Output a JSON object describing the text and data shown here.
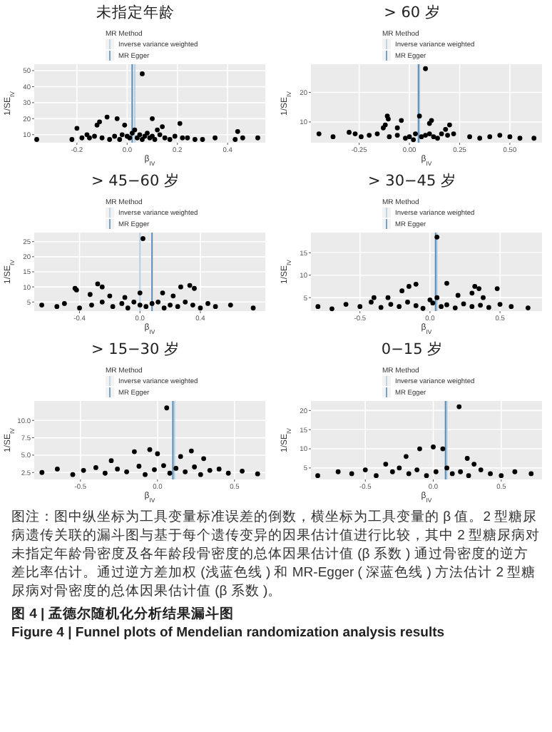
{
  "chart_data": [
    {
      "type": "scatter",
      "title": "未指定年龄",
      "xlabel": "β$_{IV}$",
      "ylabel": "1/SE$_{IV}$",
      "legend_title": "MR Method",
      "legend": "top",
      "grid": true,
      "marker": "circle",
      "xlim": [
        -0.37,
        0.55
      ],
      "ylim": [
        5,
        54
      ],
      "xticks": [
        {
          "value": -0.2,
          "label": "-0.2"
        },
        {
          "value": 0,
          "label": "0.0"
        },
        {
          "value": 0.2,
          "label": "0.2"
        },
        {
          "value": 0.4,
          "label": "0.4"
        }
      ],
      "yticks": [
        10,
        20,
        30,
        40,
        50
      ],
      "ref_lines": [
        {
          "axis": "x",
          "value": 0.03,
          "label": "Inverse variance weighted",
          "color": "#b3cfe3"
        },
        {
          "axis": "x",
          "value": 0.02,
          "label": "MR Egger",
          "color": "#5a8cb5"
        }
      ],
      "series": [
        {
          "color": "#000000",
          "x": [
            0.06,
            0.1,
            -0.08,
            -0.04,
            -0.12,
            -0.11,
            -0.2,
            0.21,
            0.14,
            0.12,
            0.44,
            0.03,
            -0.01,
            0.02,
            0.05,
            0.08,
            -0.36,
            -0.22,
            -0.18,
            -0.15,
            -0.13,
            -0.1,
            -0.07,
            -0.05,
            -0.03,
            0.0,
            0.01,
            0.04,
            0.06,
            0.07,
            0.09,
            0.11,
            0.13,
            0.15,
            0.17,
            0.19,
            0.22,
            0.24,
            0.27,
            0.3,
            0.35,
            0.43,
            0.46,
            0.52,
            -0.16,
            -0.02,
            0.1
          ],
          "values": [
            48,
            20,
            21,
            20,
            16,
            18,
            14,
            17,
            15,
            13,
            12,
            13,
            16,
            11,
            10,
            11,
            7,
            7,
            8,
            8,
            9,
            8,
            7,
            9,
            7,
            9,
            8,
            8,
            7,
            9,
            8,
            7,
            10,
            8,
            7,
            9,
            8,
            8,
            7,
            7,
            8,
            7,
            8,
            8,
            10,
            10,
            9
          ]
        }
      ]
    },
    {
      "type": "scatter",
      "title": "> 60 岁",
      "xlabel": "β$_{IV}$",
      "ylabel": "1/SE$_{IV}$",
      "legend_title": "MR Method",
      "legend": "top",
      "grid": true,
      "marker": "circle",
      "xlim": [
        -0.49,
        0.66
      ],
      "ylim": [
        3,
        29.5
      ],
      "xticks": [
        {
          "value": -0.25,
          "label": "-0.25"
        },
        {
          "value": 0,
          "label": "0.00"
        },
        {
          "value": 0.25,
          "label": "0.25"
        },
        {
          "value": 0.5,
          "label": "0.50"
        }
      ],
      "yticks": [
        10,
        20
      ],
      "ref_lines": [
        {
          "axis": "x",
          "value": 0.05,
          "label": "Inverse variance weighted",
          "color": "#b3cfe3"
        },
        {
          "axis": "x",
          "value": 0.045,
          "label": "MR Egger",
          "color": "#5a8cb5"
        }
      ],
      "series": [
        {
          "color": "#000000",
          "x": [
            0.08,
            -0.11,
            -0.105,
            -0.04,
            0.05,
            0.11,
            0.1,
            -0.12,
            -0.13,
            0.2,
            0.18,
            -0.45,
            -0.38,
            -0.3,
            -0.27,
            -0.24,
            -0.2,
            -0.16,
            -0.1,
            -0.06,
            -0.02,
            0.0,
            0.03,
            0.06,
            0.08,
            0.1,
            0.12,
            0.14,
            0.16,
            0.19,
            0.22,
            0.3,
            0.35,
            0.4,
            0.45,
            0.5,
            0.55,
            0.62,
            -0.06,
            0.02
          ],
          "values": [
            28,
            12,
            11,
            10.5,
            12,
            10.5,
            9.5,
            9,
            8,
            9,
            7.5,
            6,
            5,
            6.5,
            6,
            5,
            5.5,
            6,
            5,
            5.5,
            4.5,
            5,
            6,
            5,
            5.5,
            6,
            5,
            4.5,
            6,
            5.5,
            6,
            5,
            4.5,
            5,
            5.5,
            5,
            4.5,
            4.5,
            8,
            4
          ]
        }
      ]
    },
    {
      "type": "scatter",
      "title": "> 45−60 岁",
      "xlabel": "β$_{IV}$",
      "ylabel": "1/SE$_{IV}$",
      "legend_title": "MR Method",
      "legend": "top",
      "grid": true,
      "marker": "circle",
      "xlim": [
        -0.7,
        0.83
      ],
      "ylim": [
        2,
        28
      ],
      "xticks": [
        {
          "value": -0.4,
          "label": "-0.4"
        },
        {
          "value": 0,
          "label": "0.0"
        },
        {
          "value": 0.4,
          "label": "0.4"
        }
      ],
      "yticks": [
        5,
        10,
        15,
        20,
        25
      ],
      "ref_lines": [
        {
          "axis": "x",
          "value": 0.0,
          "label": "Inverse variance weighted",
          "color": "#b3cfe3"
        },
        {
          "axis": "x",
          "value": 0.08,
          "label": "MR Egger",
          "color": "#5a8cb5"
        }
      ],
      "series": [
        {
          "color": "#000000",
          "x": [
            0.02,
            -0.28,
            -0.25,
            -0.43,
            -0.42,
            0.0,
            0.27,
            0.33,
            0.36,
            0.15,
            0.22,
            -0.33,
            -0.2,
            -0.1,
            -0.65,
            -0.55,
            -0.5,
            -0.4,
            -0.32,
            -0.25,
            -0.18,
            -0.12,
            -0.08,
            -0.04,
            0.0,
            0.04,
            0.08,
            0.12,
            0.16,
            0.2,
            0.25,
            0.3,
            0.35,
            0.4,
            0.45,
            0.5,
            0.6,
            0.75
          ],
          "values": [
            26,
            11,
            10,
            9.5,
            9,
            8,
            10,
            10.5,
            9.5,
            8,
            7,
            7.5,
            7,
            6.5,
            4,
            3.5,
            4.5,
            3,
            4,
            5,
            3.5,
            4.5,
            3,
            5,
            4,
            3.5,
            4.5,
            5,
            3,
            4,
            3.5,
            5,
            4,
            3,
            4.5,
            3.5,
            4,
            3
          ]
        }
      ]
    },
    {
      "type": "scatter",
      "title": "> 30−45 岁",
      "xlabel": "β$_{IV}$",
      "ylabel": "1/SE$_{IV}$",
      "legend_title": "MR Method",
      "legend": "top",
      "grid": true,
      "marker": "circle",
      "xlim": [
        -0.85,
        0.8
      ],
      "ylim": [
        2,
        19.5
      ],
      "xticks": [
        {
          "value": -0.5,
          "label": "-0.5"
        },
        {
          "value": 0,
          "label": "0.0"
        },
        {
          "value": 0.5,
          "label": "0.5"
        }
      ],
      "yticks": [
        5,
        10,
        15
      ],
      "ref_lines": [
        {
          "axis": "x",
          "value": 0.05,
          "label": "Inverse variance weighted",
          "color": "#b3cfe3"
        },
        {
          "axis": "x",
          "value": 0.04,
          "label": "MR Egger",
          "color": "#5a8cb5"
        }
      ],
      "series": [
        {
          "color": "#000000",
          "x": [
            0.05,
            -0.1,
            0.12,
            -0.15,
            -0.2,
            0.32,
            0.35,
            0.48,
            0.3,
            0.38,
            -0.4,
            -0.3,
            0.05,
            0.0,
            0.2,
            -0.8,
            -0.7,
            -0.6,
            -0.5,
            -0.42,
            -0.35,
            -0.28,
            -0.22,
            -0.16,
            -0.1,
            -0.05,
            0.02,
            0.08,
            0.12,
            0.18,
            0.24,
            0.3,
            0.36,
            0.42,
            0.5,
            0.58,
            0.7
          ],
          "values": [
            18.5,
            8,
            8.2,
            7.5,
            6.5,
            7.5,
            7,
            7,
            6,
            5,
            5,
            5,
            5,
            4.5,
            5.5,
            3,
            2.5,
            3.5,
            3,
            4,
            2.8,
            3.5,
            3,
            4,
            3.2,
            2.6,
            3.8,
            3,
            3.4,
            2.7,
            3.6,
            3,
            3.3,
            2.8,
            3.5,
            3,
            2.7
          ]
        }
      ]
    },
    {
      "type": "scatter",
      "title": "> 15−30 岁",
      "xlabel": "β$_{IV}$",
      "ylabel": "1/SE$_{IV}$",
      "legend_title": "MR Method",
      "legend": "top",
      "grid": true,
      "marker": "circle",
      "xlim": [
        -0.8,
        0.7
      ],
      "ylim": [
        1.5,
        12.8
      ],
      "xticks": [
        {
          "value": -0.5,
          "label": "-0.5"
        },
        {
          "value": 0,
          "label": "0.0"
        },
        {
          "value": 0.5,
          "label": "0.5"
        }
      ],
      "yticks": [
        {
          "value": 2.5,
          "label": "2.5"
        },
        {
          "value": 5,
          "label": "5.0"
        },
        {
          "value": 7.5,
          "label": "7.5"
        },
        {
          "value": 10,
          "label": "10.0"
        }
      ],
      "ref_lines": [
        {
          "axis": "x",
          "value": 0.11,
          "label": "Inverse variance weighted",
          "color": "#b3cfe3"
        },
        {
          "axis": "x",
          "value": 0.1,
          "label": "MR Egger",
          "color": "#5a8cb5"
        }
      ],
      "series": [
        {
          "color": "#000000",
          "x": [
            0.06,
            -0.15,
            -0.05,
            0.0,
            0.22,
            0.3,
            -0.3,
            0.15,
            -0.75,
            -0.65,
            -0.55,
            -0.48,
            -0.4,
            -0.34,
            -0.26,
            -0.2,
            -0.12,
            -0.08,
            -0.02,
            0.04,
            0.08,
            0.12,
            0.18,
            0.24,
            0.28,
            0.34,
            0.4,
            0.46,
            0.55,
            0.65
          ],
          "values": [
            11.8,
            5.5,
            5.8,
            5.2,
            5.6,
            4.5,
            4.2,
            4.8,
            2.5,
            3,
            2.2,
            2.8,
            3.2,
            2.4,
            3,
            2.6,
            3.4,
            2.2,
            2.9,
            3.5,
            2.4,
            3.1,
            2.6,
            3.3,
            2.2,
            2.8,
            3,
            2.4,
            2.7,
            2.3
          ]
        }
      ]
    },
    {
      "type": "scatter",
      "title": "0−15 岁",
      "xlabel": "β$_{IV}$",
      "ylabel": "1/SE$_{IV}$",
      "legend_title": "MR Method",
      "legend": "top",
      "grid": true,
      "marker": "circle",
      "xlim": [
        -0.9,
        0.8
      ],
      "ylim": [
        2,
        22.5
      ],
      "xticks": [
        {
          "value": -0.5,
          "label": "-0.5"
        },
        {
          "value": 0,
          "label": "0.0"
        },
        {
          "value": 0.5,
          "label": "0.5"
        }
      ],
      "yticks": [
        5,
        10,
        15,
        20
      ],
      "ref_lines": [
        {
          "axis": "x",
          "value": 0.1,
          "label": "Inverse variance weighted",
          "color": "#b3cfe3"
        },
        {
          "axis": "x",
          "value": 0.09,
          "label": "MR Egger",
          "color": "#5a8cb5"
        }
      ],
      "series": [
        {
          "color": "#000000",
          "x": [
            0.19,
            -0.1,
            0.0,
            0.07,
            -0.2,
            0.25,
            0.3,
            -0.35,
            -0.85,
            -0.7,
            -0.6,
            -0.5,
            -0.42,
            -0.3,
            -0.25,
            -0.18,
            -0.12,
            -0.05,
            0.02,
            0.1,
            0.14,
            0.2,
            0.26,
            0.35,
            0.42,
            0.5,
            0.6,
            0.72
          ],
          "values": [
            21,
            10,
            10.5,
            10,
            8,
            7.5,
            6,
            6,
            3,
            4,
            3.5,
            4.5,
            3,
            4,
            5,
            3.5,
            4.5,
            3,
            4,
            5,
            3.5,
            4,
            3,
            4.5,
            3.5,
            3,
            4,
            3.5
          ]
        }
      ]
    },
    {
      "type": "other",
      "annotations": [
        "图注：图中纵坐标为工具变量标准误差的倒数，横坐标为工具变量的 β 值。2 型糖尿病遗传关联的漏斗图与基于每个遗传变异的因果估计值进行比较，其中 2 型糖尿病对未指定年龄骨密度及各年龄段骨密度的总体因果估计值 (β 系数 ) 通过骨密度的逆方差比率估计。通过逆方差加权 (浅蓝色线 ) 和 MR-Egger ( 深蓝色线 ) 方法估计 2 型糖尿病对骨密度的总体因果估计值 (β 系数 )。",
        "图 4 | 孟德尔随机化分析结果漏斗图",
        "Figure 4 | Funnel plots of Mendelian randomization analysis results"
      ]
    }
  ]
}
